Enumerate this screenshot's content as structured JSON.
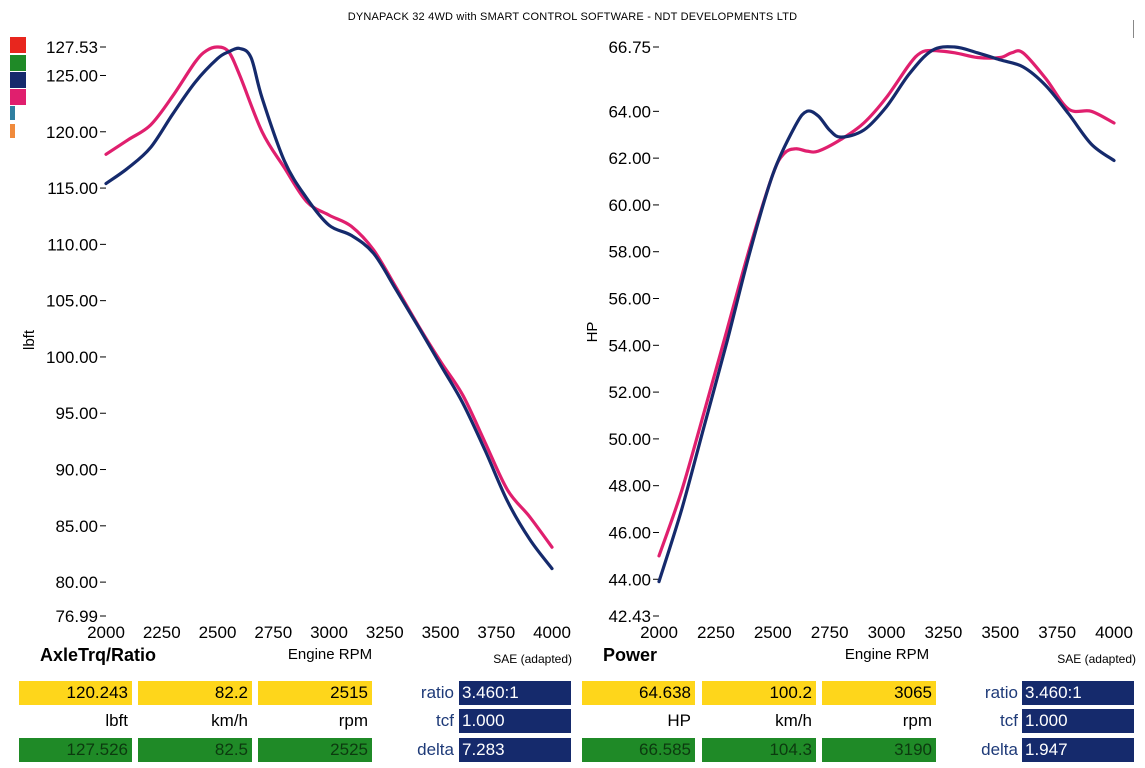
{
  "title": "DYNAPACK 32 4WD with SMART CONTROL SOFTWARE - NDT DEVELOPMENTS LTD",
  "legend_swatches": [
    {
      "name": "red",
      "color": "#e8261e"
    },
    {
      "name": "green",
      "color": "#1f8a27"
    },
    {
      "name": "navy",
      "color": "#152a6c"
    },
    {
      "name": "magenta",
      "color": "#e01f6e"
    },
    {
      "name": "teal",
      "color": "#2f7fa0"
    },
    {
      "name": "orange",
      "color": "#f08a3c"
    }
  ],
  "chart_data": [
    {
      "type": "line",
      "title": "AxleTrq/Ratio",
      "xlabel": "Engine RPM",
      "ylabel": "lbft",
      "note": "SAE (adapted)",
      "xlim": [
        2000,
        4000
      ],
      "ylim": [
        76.99,
        127.53
      ],
      "x_ticks": [
        "2000",
        "2250",
        "2500",
        "2750",
        "3000",
        "3250",
        "3500",
        "3750",
        "4000"
      ],
      "y_ticks": [
        {
          "value": 127.53,
          "label": "127.53"
        },
        {
          "value": 125,
          "label": "125.00"
        },
        {
          "value": 120,
          "label": "120.00"
        },
        {
          "value": 115,
          "label": "115.00"
        },
        {
          "value": 110,
          "label": "110.00"
        },
        {
          "value": 105,
          "label": "105.00"
        },
        {
          "value": 100,
          "label": "100.00"
        },
        {
          "value": 95,
          "label": "95.00"
        },
        {
          "value": 90,
          "label": "90.00"
        },
        {
          "value": 85,
          "label": "85.00"
        },
        {
          "value": 80,
          "label": "80.00"
        },
        {
          "value": 76.99,
          "label": "76.99"
        }
      ],
      "series": [
        {
          "color": "#e01f6e",
          "x": [
            2000,
            2100,
            2200,
            2300,
            2400,
            2450,
            2500,
            2550,
            2600,
            2700,
            2800,
            2900,
            3000,
            3100,
            3200,
            3300,
            3400,
            3500,
            3600,
            3700,
            3800,
            3900,
            4000
          ],
          "y": [
            118.0,
            119.3,
            120.6,
            123.2,
            126.2,
            127.2,
            127.53,
            127.1,
            125.0,
            120.0,
            116.8,
            113.8,
            112.6,
            111.6,
            109.5,
            106.2,
            102.8,
            99.6,
            96.6,
            92.4,
            88.2,
            85.8,
            83.1
          ]
        },
        {
          "color": "#152a6c",
          "x": [
            2000,
            2100,
            2200,
            2300,
            2400,
            2500,
            2550,
            2600,
            2650,
            2700,
            2800,
            2900,
            3000,
            3100,
            3200,
            3300,
            3400,
            3500,
            3600,
            3700,
            3800,
            3900,
            4000
          ],
          "y": [
            115.4,
            116.8,
            118.6,
            121.6,
            124.4,
            126.5,
            127.1,
            127.4,
            126.6,
            123.0,
            117.4,
            114.1,
            111.7,
            110.8,
            109.2,
            106.0,
            102.7,
            99.3,
            95.9,
            91.7,
            87.2,
            83.8,
            81.2
          ]
        }
      ]
    },
    {
      "type": "line",
      "title": "Power",
      "xlabel": "Engine RPM",
      "ylabel": "HP",
      "note": "SAE (adapted)",
      "xlim": [
        2000,
        4000
      ],
      "ylim": [
        42.43,
        66.75
      ],
      "x_ticks": [
        "2000",
        "2250",
        "2500",
        "2750",
        "3000",
        "3250",
        "3500",
        "3750",
        "4000"
      ],
      "y_ticks": [
        {
          "value": 66.75,
          "label": "66.75"
        },
        {
          "value": 64,
          "label": "64.00"
        },
        {
          "value": 62,
          "label": "62.00"
        },
        {
          "value": 60,
          "label": "60.00"
        },
        {
          "value": 58,
          "label": "58.00"
        },
        {
          "value": 56,
          "label": "56.00"
        },
        {
          "value": 54,
          "label": "54.00"
        },
        {
          "value": 52,
          "label": "52.00"
        },
        {
          "value": 50,
          "label": "50.00"
        },
        {
          "value": 48,
          "label": "48.00"
        },
        {
          "value": 46,
          "label": "46.00"
        },
        {
          "value": 44,
          "label": "44.00"
        },
        {
          "value": 42.43,
          "label": "42.43"
        }
      ],
      "series": [
        {
          "color": "#e01f6e",
          "x": [
            2000,
            2100,
            2200,
            2300,
            2400,
            2500,
            2550,
            2600,
            2650,
            2700,
            2800,
            2900,
            3000,
            3100,
            3150,
            3200,
            3300,
            3400,
            3500,
            3550,
            3600,
            3700,
            3800,
            3900,
            4000
          ],
          "y": [
            45.0,
            47.8,
            51.2,
            54.7,
            58.2,
            61.3,
            62.2,
            62.4,
            62.3,
            62.3,
            62.8,
            63.5,
            64.6,
            66.0,
            66.5,
            66.6,
            66.5,
            66.3,
            66.3,
            66.5,
            66.5,
            65.4,
            64.1,
            64.0,
            63.5
          ]
        },
        {
          "color": "#152a6c",
          "x": [
            2000,
            2100,
            2200,
            2300,
            2400,
            2500,
            2600,
            2650,
            2700,
            2750,
            2800,
            2900,
            3000,
            3100,
            3200,
            3300,
            3400,
            3500,
            3600,
            3700,
            3800,
            3900,
            4000
          ],
          "y": [
            43.9,
            47.0,
            50.6,
            54.2,
            58.0,
            61.3,
            63.4,
            64.0,
            63.8,
            63.2,
            62.9,
            63.2,
            64.2,
            65.6,
            66.6,
            66.75,
            66.5,
            66.2,
            65.9,
            65.1,
            63.9,
            62.6,
            61.9
          ]
        }
      ]
    }
  ],
  "readouts": {
    "torque": {
      "row1": [
        "120.243",
        "82.2",
        "2515"
      ],
      "units": [
        "lbft",
        "km/h",
        "rpm"
      ],
      "row3": [
        "127.526",
        "82.5",
        "2525"
      ],
      "params": [
        {
          "label": "ratio",
          "value": "3.460:1"
        },
        {
          "label": "tcf",
          "value": "1.000"
        },
        {
          "label": "delta",
          "value": "7.283"
        }
      ]
    },
    "power": {
      "row1": [
        "64.638",
        "100.2",
        "3065"
      ],
      "units": [
        "HP",
        "km/h",
        "rpm"
      ],
      "row3": [
        "66.585",
        "104.3",
        "3190"
      ],
      "params": [
        {
          "label": "ratio",
          "value": "3.460:1"
        },
        {
          "label": "tcf",
          "value": "1.000"
        },
        {
          "label": "delta",
          "value": "1.947"
        }
      ]
    }
  }
}
